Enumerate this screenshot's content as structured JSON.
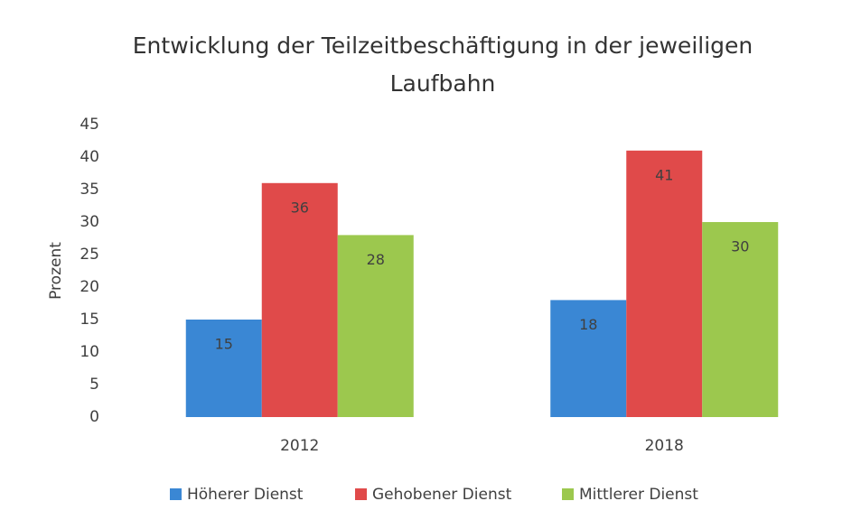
{
  "chart_data": {
    "type": "bar",
    "title": "Entwicklung der Teilzeitbeschäftigung in der jeweiligen Laufbahn",
    "y_label": "Prozent",
    "categories": [
      "2012",
      "2018"
    ],
    "series": [
      {
        "name": "Höherer Dienst",
        "color": "#3a87d4",
        "values": [
          15,
          18
        ]
      },
      {
        "name": "Gehobener Dienst",
        "color": "#e04a4a",
        "values": [
          36,
          41
        ]
      },
      {
        "name": "Mittlerer Dienst",
        "color": "#9cc84e",
        "values": [
          28,
          30
        ]
      }
    ],
    "ylim": [
      0,
      45
    ],
    "yticks": [
      0,
      5,
      10,
      15,
      20,
      25,
      30,
      35,
      40,
      45
    ],
    "grid": false,
    "legend": "bottom"
  }
}
